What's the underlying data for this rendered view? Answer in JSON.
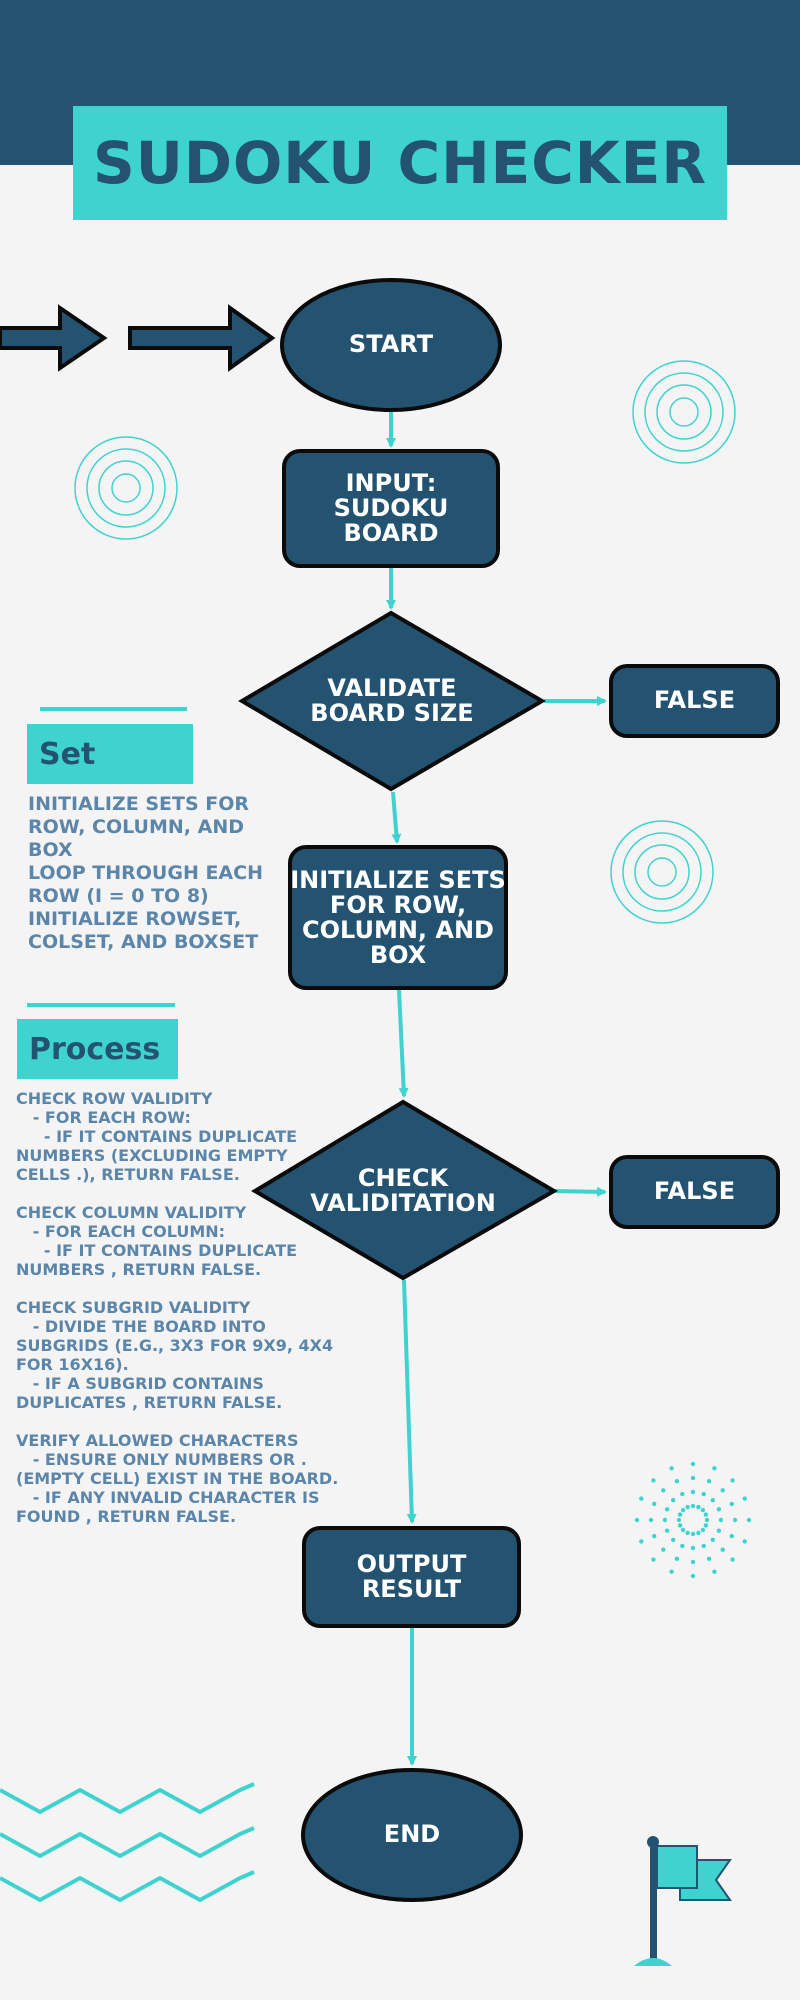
{
  "title": "SUDOKU CHECKER",
  "colors": {
    "dark": "#235371",
    "accent": "#3fd3cf",
    "side_text": "#5b86a9",
    "background": "#f4f4f4"
  },
  "nodes": {
    "start": "START",
    "input": "INPUT:\nSUDOKU\nBOARD",
    "validate_size": "VALIDATE\nBOARD SIZE",
    "false_1": "FALSE",
    "init_sets": "INITIALIZE SETS\nFOR ROW,\nCOLUMN, AND\nBOX",
    "check": "CHECK\nVALIDITATION",
    "false_2": "FALSE",
    "output": "OUTPUT\nRESULT",
    "end": "END"
  },
  "set_panel": {
    "heading": "Set",
    "text": "INITIALIZE SETS FOR\nROW, COLUMN, AND\nBOX\nLOOP THROUGH EACH\nROW (I = 0 TO 8)\nINITIALIZE ROWSET,\nCOLSET, AND BOXSET"
  },
  "process_panel": {
    "heading": "Process",
    "text": "CHECK ROW VALIDITY\n   - FOR EACH ROW:\n     - IF IT CONTAINS DUPLICATE\nNUMBERS (EXCLUDING EMPTY\nCELLS .), RETURN FALSE.\n\nCHECK COLUMN VALIDITY\n   - FOR EACH COLUMN:\n     - IF IT CONTAINS DUPLICATE\nNUMBERS , RETURN FALSE.\n\nCHECK SUBGRID VALIDITY\n   - DIVIDE THE BOARD INTO\nSUBGRIDS (E.G., 3X3 FOR 9X9, 4X4\nFOR 16X16).\n   - IF A SUBGRID CONTAINS\nDUPLICATES , RETURN FALSE.\n\nVERIFY ALLOWED CHARACTERS\n   - ENSURE ONLY NUMBERS OR .\n(EMPTY CELL) EXIST IN THE BOARD.\n   - IF ANY INVALID CHARACTER IS\nFOUND , RETURN FALSE."
  },
  "decorations": [
    "double-arrow",
    "concentric-circles",
    "starburst",
    "zigzag-lines",
    "flag-icon"
  ]
}
